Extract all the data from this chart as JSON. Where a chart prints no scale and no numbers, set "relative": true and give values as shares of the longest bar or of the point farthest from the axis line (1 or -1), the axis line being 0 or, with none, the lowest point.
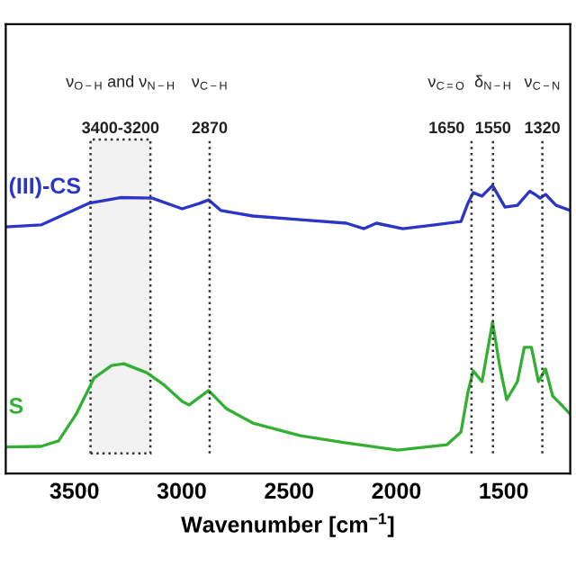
{
  "chart_data": {
    "type": "line",
    "relative": true,
    "xlabel": "Wavenumber [cm$^{−1}$]",
    "xlim": [
      3820,
      1190
    ],
    "xticks": [
      3500,
      3000,
      2500,
      2000,
      1500
    ],
    "grid": false,
    "legend": false,
    "line_style": "solid",
    "series": [
      {
        "name": "(III)-CS",
        "color": "#2b35c8",
        "x": [
          3820,
          3656,
          3434,
          3286,
          3138,
          2998,
          2916,
          2875,
          2817,
          2669,
          2447,
          2233,
          2151,
          2093,
          1970,
          1822,
          1699,
          1667,
          1642,
          1601,
          1552,
          1494,
          1436,
          1379,
          1354,
          1330,
          1305,
          1256,
          1190
        ],
        "values": [
          0.856,
          0.863,
          0.938,
          0.958,
          0.956,
          0.919,
          0.938,
          0.95,
          0.913,
          0.894,
          0.881,
          0.869,
          0.85,
          0.869,
          0.85,
          0.863,
          0.875,
          0.938,
          0.975,
          0.963,
          1.0,
          0.925,
          0.931,
          0.98,
          0.969,
          0.956,
          0.969,
          0.931,
          0.913
        ]
      },
      {
        "name": "S",
        "color": "#33b033",
        "x": [
          3820,
          3656,
          3574,
          3492,
          3409,
          3327,
          3270,
          3163,
          3080,
          2998,
          2965,
          2875,
          2792,
          2669,
          2447,
          2233,
          1994,
          1764,
          1699,
          1667,
          1642,
          1601,
          1552,
          1519,
          1486,
          1436,
          1404,
          1371,
          1338,
          1305,
          1272,
          1231,
          1190
        ],
        "values": [
          0.092,
          0.094,
          0.113,
          0.206,
          0.331,
          0.375,
          0.381,
          0.35,
          0.306,
          0.25,
          0.238,
          0.288,
          0.225,
          0.175,
          0.131,
          0.106,
          0.081,
          0.1,
          0.144,
          0.281,
          0.356,
          0.319,
          0.525,
          0.375,
          0.256,
          0.319,
          0.438,
          0.438,
          0.319,
          0.363,
          0.269,
          0.238,
          0.206
        ]
      }
    ],
    "ref_lines": [
      {
        "axis": "x",
        "value": 2870,
        "label": "ν$_{C−H}$\n2870",
        "color": "#333333",
        "line_style": "dotted"
      },
      {
        "axis": "x",
        "value": 1650,
        "label": "ν$_{C=O}$\n1650",
        "color": "#333333",
        "line_style": "dotted"
      },
      {
        "axis": "x",
        "value": 1550,
        "label": "δ$_{N−H}$\n1550",
        "color": "#333333",
        "line_style": "dotted"
      },
      {
        "axis": "x",
        "value": 1320,
        "label": "ν$_{C−N}$\n1320",
        "color": "#333333",
        "line_style": "dotted"
      }
    ],
    "bands": [
      {
        "axis": "x",
        "from": 3425,
        "to": 3146,
        "label": "ν$_{O−H}$ and ν$_{N−H}$\n3400-3200",
        "color": "#333333"
      }
    ]
  }
}
